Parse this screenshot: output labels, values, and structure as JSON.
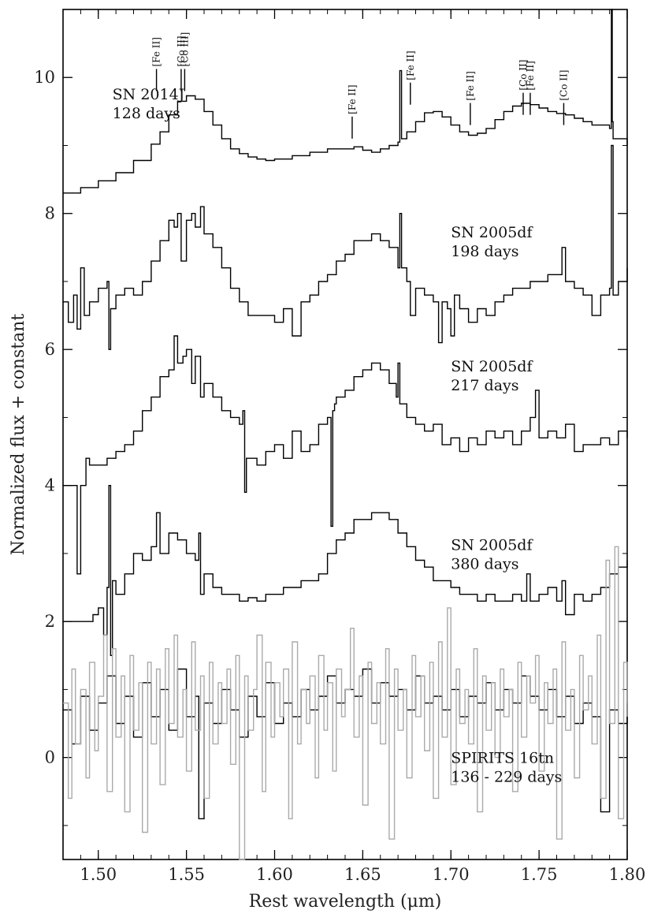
{
  "chart_data": {
    "type": "line",
    "xlabel": "Rest wavelength (μm)",
    "ylabel": "Normalized flux + constant",
    "xlim": [
      1.48,
      1.8
    ],
    "ylim": [
      -1.5,
      11.0
    ],
    "x_ticks": [
      "1.50",
      "1.55",
      "1.60",
      "1.65",
      "1.70",
      "1.75",
      "1.80"
    ],
    "y_ticks": [
      "0",
      "2",
      "4",
      "6",
      "8",
      "10"
    ],
    "grid": false,
    "line_ids": [
      {
        "label": "[Fe II]",
        "x": 1.533,
        "tip": 9.8
      },
      {
        "label": "[Co II]",
        "x": 1.547,
        "tip": 9.8
      },
      {
        "label": "[Co III]",
        "x": 1.549,
        "tip": 9.8
      },
      {
        "label": "[Fe II]",
        "x": 1.644,
        "tip": 9.1
      },
      {
        "label": "[Fe II]",
        "x": 1.677,
        "tip": 9.6
      },
      {
        "label": "[Fe II]",
        "x": 1.711,
        "tip": 9.3
      },
      {
        "label": "[Co II]",
        "x": 1.741,
        "tip": 9.45
      },
      {
        "label": "[Fe II]",
        "x": 1.745,
        "tip": 9.45
      },
      {
        "label": "[Co II]",
        "x": 1.764,
        "tip": 9.3
      }
    ],
    "series": [
      {
        "name": "SN 2014J",
        "name2": "128 days",
        "label_x": 1.508,
        "label_y": 9.68,
        "color": "#000000",
        "x": [
          1.48,
          1.49,
          1.5,
          1.51,
          1.52,
          1.53,
          1.535,
          1.54,
          1.545,
          1.55,
          1.555,
          1.56,
          1.565,
          1.57,
          1.575,
          1.58,
          1.585,
          1.59,
          1.595,
          1.6,
          1.61,
          1.62,
          1.63,
          1.64,
          1.645,
          1.65,
          1.655,
          1.66,
          1.665,
          1.67,
          1.671,
          1.672,
          1.675,
          1.68,
          1.685,
          1.69,
          1.695,
          1.7,
          1.705,
          1.71,
          1.715,
          1.72,
          1.725,
          1.73,
          1.735,
          1.74,
          1.745,
          1.75,
          1.755,
          1.76,
          1.765,
          1.77,
          1.775,
          1.78,
          1.785,
          1.79,
          1.791,
          1.7915,
          1.792,
          1.795,
          1.8
        ],
        "y": [
          8.3,
          8.38,
          8.48,
          8.6,
          8.78,
          9.02,
          9.2,
          9.45,
          9.65,
          9.73,
          9.68,
          9.5,
          9.3,
          9.1,
          8.95,
          8.88,
          8.83,
          8.8,
          8.78,
          8.8,
          8.85,
          8.9,
          8.95,
          8.95,
          8.98,
          8.93,
          8.9,
          8.95,
          9.0,
          9.05,
          10.1,
          9.1,
          9.2,
          9.35,
          9.48,
          9.5,
          9.42,
          9.3,
          9.2,
          9.15,
          9.18,
          9.25,
          9.38,
          9.5,
          9.58,
          9.62,
          9.6,
          9.55,
          9.5,
          9.47,
          9.45,
          9.4,
          9.35,
          9.3,
          9.3,
          9.25,
          11.2,
          9.35,
          9.1,
          9.1,
          9.0
        ]
      },
      {
        "name": "SN 2005df",
        "name2": "198 days",
        "label_x": 1.7,
        "label_y": 7.65,
        "color": "#000000",
        "x": [
          1.48,
          1.483,
          1.486,
          1.488,
          1.49,
          1.492,
          1.495,
          1.5,
          1.505,
          1.506,
          1.507,
          1.51,
          1.515,
          1.52,
          1.525,
          1.53,
          1.535,
          1.54,
          1.543,
          1.545,
          1.547,
          1.55,
          1.553,
          1.555,
          1.558,
          1.56,
          1.565,
          1.57,
          1.575,
          1.58,
          1.585,
          1.59,
          1.595,
          1.6,
          1.605,
          1.61,
          1.615,
          1.62,
          1.625,
          1.63,
          1.635,
          1.64,
          1.645,
          1.65,
          1.655,
          1.66,
          1.665,
          1.67,
          1.671,
          1.672,
          1.675,
          1.677,
          1.68,
          1.685,
          1.69,
          1.693,
          1.695,
          1.698,
          1.7,
          1.702,
          1.705,
          1.71,
          1.715,
          1.72,
          1.725,
          1.73,
          1.735,
          1.74,
          1.745,
          1.75,
          1.755,
          1.76,
          1.763,
          1.765,
          1.77,
          1.775,
          1.78,
          1.785,
          1.79,
          1.791,
          1.792,
          1.795,
          1.8
        ],
        "y": [
          6.7,
          6.4,
          6.8,
          6.3,
          7.2,
          6.5,
          6.7,
          6.9,
          7.0,
          6.0,
          6.6,
          6.8,
          6.9,
          6.8,
          7.0,
          7.3,
          7.6,
          7.9,
          7.8,
          8.0,
          7.3,
          7.9,
          8.0,
          7.8,
          8.1,
          7.7,
          7.5,
          7.2,
          6.9,
          6.7,
          6.5,
          6.5,
          6.5,
          6.4,
          6.6,
          6.2,
          6.7,
          6.8,
          7.0,
          7.1,
          7.3,
          7.4,
          7.6,
          7.6,
          7.7,
          7.6,
          7.5,
          7.2,
          8.0,
          7.2,
          7.0,
          6.5,
          6.9,
          6.8,
          6.7,
          6.1,
          6.7,
          6.6,
          6.2,
          6.8,
          6.6,
          6.4,
          6.6,
          6.5,
          6.7,
          6.8,
          6.9,
          6.9,
          7.0,
          7.0,
          7.1,
          7.1,
          7.5,
          7.0,
          6.9,
          6.8,
          6.5,
          6.8,
          6.9,
          9.0,
          6.8,
          7.0,
          7.2
        ]
      },
      {
        "name": "SN 2005df",
        "name2": "217 days",
        "label_x": 1.7,
        "label_y": 5.68,
        "color": "#000000",
        "x": [
          1.48,
          1.485,
          1.487,
          1.488,
          1.49,
          1.493,
          1.495,
          1.5,
          1.505,
          1.51,
          1.515,
          1.52,
          1.525,
          1.53,
          1.535,
          1.54,
          1.543,
          1.545,
          1.548,
          1.55,
          1.553,
          1.555,
          1.558,
          1.56,
          1.565,
          1.57,
          1.575,
          1.58,
          1.582,
          1.583,
          1.584,
          1.585,
          1.59,
          1.595,
          1.6,
          1.605,
          1.61,
          1.615,
          1.62,
          1.625,
          1.63,
          1.632,
          1.633,
          1.634,
          1.635,
          1.64,
          1.645,
          1.65,
          1.655,
          1.66,
          1.665,
          1.669,
          1.67,
          1.671,
          1.675,
          1.68,
          1.685,
          1.69,
          1.695,
          1.7,
          1.705,
          1.71,
          1.715,
          1.72,
          1.725,
          1.73,
          1.735,
          1.74,
          1.745,
          1.748,
          1.75,
          1.755,
          1.76,
          1.765,
          1.77,
          1.775,
          1.78,
          1.785,
          1.79,
          1.795,
          1.8
        ],
        "y": [
          4.0,
          4.0,
          4.0,
          2.7,
          4.0,
          4.4,
          4.3,
          4.3,
          4.4,
          4.5,
          4.6,
          4.8,
          5.1,
          5.3,
          5.6,
          5.7,
          6.2,
          5.8,
          5.9,
          6.0,
          5.5,
          5.9,
          5.3,
          5.5,
          5.3,
          5.1,
          5.0,
          4.9,
          5.1,
          3.9,
          4.4,
          4.4,
          4.3,
          4.5,
          4.6,
          4.4,
          4.8,
          4.5,
          4.6,
          4.9,
          5.0,
          3.4,
          5.1,
          5.2,
          5.3,
          5.4,
          5.6,
          5.7,
          5.8,
          5.7,
          5.5,
          5.3,
          5.8,
          5.2,
          5.0,
          4.9,
          4.8,
          4.9,
          4.6,
          4.7,
          4.5,
          4.7,
          4.6,
          4.8,
          4.7,
          4.8,
          4.6,
          4.8,
          5.0,
          5.4,
          4.7,
          4.8,
          4.7,
          4.9,
          4.5,
          4.6,
          4.6,
          4.7,
          4.6,
          4.8,
          4.7
        ]
      },
      {
        "name": "SN 2005df",
        "name2": "380 days",
        "label_x": 1.7,
        "label_y": 3.05,
        "color": "#000000",
        "x": [
          1.48,
          1.49,
          1.495,
          1.497,
          1.5,
          1.503,
          1.505,
          1.506,
          1.507,
          1.508,
          1.51,
          1.515,
          1.52,
          1.525,
          1.53,
          1.533,
          1.535,
          1.54,
          1.545,
          1.55,
          1.555,
          1.557,
          1.558,
          1.56,
          1.565,
          1.57,
          1.575,
          1.58,
          1.585,
          1.59,
          1.595,
          1.6,
          1.605,
          1.61,
          1.615,
          1.62,
          1.625,
          1.63,
          1.635,
          1.64,
          1.645,
          1.65,
          1.655,
          1.66,
          1.665,
          1.67,
          1.675,
          1.68,
          1.685,
          1.69,
          1.695,
          1.7,
          1.705,
          1.71,
          1.715,
          1.72,
          1.725,
          1.73,
          1.735,
          1.74,
          1.743,
          1.745,
          1.75,
          1.755,
          1.76,
          1.763,
          1.765,
          1.77,
          1.775,
          1.78,
          1.785,
          1.79,
          1.795,
          1.8
        ],
        "y": [
          2.0,
          2.0,
          2.0,
          2.1,
          2.2,
          1.8,
          2.5,
          4.0,
          1.5,
          2.6,
          2.4,
          2.7,
          3.0,
          2.9,
          3.1,
          3.6,
          3.0,
          3.3,
          3.2,
          3.0,
          2.9,
          3.3,
          2.4,
          2.7,
          2.5,
          2.4,
          2.4,
          2.3,
          2.35,
          2.3,
          2.4,
          2.4,
          2.5,
          2.5,
          2.6,
          2.6,
          2.7,
          3.0,
          3.2,
          3.3,
          3.5,
          3.5,
          3.6,
          3.6,
          3.5,
          3.3,
          3.1,
          2.9,
          2.8,
          2.6,
          2.6,
          2.5,
          2.4,
          2.4,
          2.3,
          2.4,
          2.3,
          2.3,
          2.4,
          2.3,
          2.7,
          2.3,
          2.4,
          2.5,
          2.3,
          2.6,
          2.1,
          2.4,
          2.3,
          2.4,
          2.5,
          2.7,
          2.8,
          2.9
        ]
      },
      {
        "name": "SPIRITS 16tn",
        "name2": "136 - 229 days",
        "label_x": 1.7,
        "label_y": -0.08,
        "color": "#000000",
        "x": [
          1.48,
          1.485,
          1.49,
          1.495,
          1.5,
          1.505,
          1.51,
          1.515,
          1.52,
          1.525,
          1.53,
          1.535,
          1.54,
          1.545,
          1.55,
          1.555,
          1.557,
          1.56,
          1.565,
          1.57,
          1.575,
          1.58,
          1.585,
          1.59,
          1.595,
          1.6,
          1.605,
          1.61,
          1.615,
          1.62,
          1.625,
          1.63,
          1.635,
          1.64,
          1.645,
          1.65,
          1.655,
          1.66,
          1.665,
          1.67,
          1.675,
          1.68,
          1.685,
          1.69,
          1.695,
          1.7,
          1.705,
          1.71,
          1.715,
          1.72,
          1.725,
          1.73,
          1.735,
          1.74,
          1.745,
          1.75,
          1.755,
          1.76,
          1.765,
          1.77,
          1.775,
          1.78,
          1.785,
          1.79,
          1.795,
          1.8
        ],
        "y": [
          0.7,
          0.2,
          0.9,
          0.4,
          0.8,
          1.2,
          0.5,
          0.9,
          0.3,
          1.1,
          0.6,
          1.0,
          0.4,
          1.3,
          0.6,
          0.9,
          -0.9,
          0.8,
          0.5,
          1.0,
          0.7,
          0.3,
          0.9,
          0.6,
          1.1,
          0.5,
          0.8,
          0.6,
          1.0,
          0.7,
          0.9,
          1.2,
          0.8,
          1.0,
          0.9,
          1.3,
          0.8,
          1.1,
          0.9,
          1.0,
          0.7,
          1.2,
          0.8,
          0.9,
          0.7,
          1.0,
          0.6,
          0.9,
          0.8,
          1.1,
          0.7,
          1.0,
          0.8,
          1.2,
          0.9,
          0.7,
          1.0,
          0.6,
          0.9,
          0.5,
          0.8,
          0.6,
          -0.8,
          0.7,
          0.5,
          0.8
        ]
      },
      {
        "name": "",
        "color": "#aaaaaa",
        "x": [
          1.48,
          1.483,
          1.485,
          1.487,
          1.49,
          1.493,
          1.495,
          1.498,
          1.5,
          1.503,
          1.505,
          1.508,
          1.51,
          1.513,
          1.515,
          1.518,
          1.52,
          1.523,
          1.525,
          1.528,
          1.53,
          1.533,
          1.535,
          1.538,
          1.54,
          1.543,
          1.545,
          1.548,
          1.55,
          1.553,
          1.555,
          1.558,
          1.56,
          1.563,
          1.565,
          1.568,
          1.57,
          1.573,
          1.575,
          1.578,
          1.58,
          1.583,
          1.585,
          1.588,
          1.59,
          1.593,
          1.595,
          1.598,
          1.6,
          1.603,
          1.605,
          1.608,
          1.61,
          1.613,
          1.615,
          1.618,
          1.62,
          1.623,
          1.625,
          1.628,
          1.63,
          1.633,
          1.635,
          1.638,
          1.64,
          1.643,
          1.645,
          1.648,
          1.65,
          1.653,
          1.655,
          1.658,
          1.66,
          1.663,
          1.665,
          1.668,
          1.67,
          1.673,
          1.675,
          1.678,
          1.68,
          1.683,
          1.685,
          1.688,
          1.69,
          1.693,
          1.695,
          1.698,
          1.7,
          1.703,
          1.705,
          1.708,
          1.71,
          1.713,
          1.715,
          1.718,
          1.72,
          1.723,
          1.725,
          1.728,
          1.73,
          1.733,
          1.735,
          1.738,
          1.74,
          1.743,
          1.745,
          1.748,
          1.75,
          1.753,
          1.755,
          1.758,
          1.76,
          1.763,
          1.765,
          1.768,
          1.77,
          1.773,
          1.775,
          1.778,
          1.78,
          1.783,
          1.785,
          1.788,
          1.79,
          1.793,
          1.795,
          1.798,
          1.8
        ],
        "y": [
          0.8,
          -0.6,
          1.3,
          0.2,
          1.0,
          -0.3,
          1.4,
          0.1,
          0.9,
          1.8,
          -0.5,
          1.6,
          0.3,
          1.2,
          -0.8,
          1.5,
          0.4,
          1.1,
          -1.1,
          1.4,
          0.2,
          1.3,
          -0.4,
          1.6,
          0.5,
          1.8,
          0.3,
          1.0,
          -0.2,
          1.7,
          0.4,
          1.2,
          -0.6,
          1.4,
          0.2,
          1.1,
          0.5,
          1.3,
          -0.1,
          1.5,
          -1.9,
          1.2,
          0.4,
          1.0,
          1.8,
          -0.5,
          1.4,
          0.3,
          1.1,
          0.6,
          1.3,
          -0.9,
          1.7,
          0.2,
          1.0,
          0.5,
          1.2,
          -0.3,
          1.5,
          0.4,
          1.1,
          -0.2,
          1.3,
          0.6,
          1.0,
          1.9,
          0.3,
          1.2,
          -0.7,
          1.4,
          0.5,
          1.1,
          0.2,
          1.6,
          -1.2,
          1.3,
          0.4,
          1.0,
          -0.3,
          1.5,
          0.6,
          1.2,
          0.1,
          1.4,
          -0.6,
          1.7,
          0.3,
          2.2,
          -0.4,
          1.3,
          0.5,
          1.0,
          0.2,
          1.6,
          -0.8,
          1.2,
          0.4,
          1.1,
          0.0,
          1.3,
          0.6,
          1.0,
          -0.5,
          1.4,
          0.3,
          1.2,
          0.8,
          1.5,
          -0.2,
          1.1,
          0.5,
          1.3,
          -1.2,
          1.7,
          0.4,
          1.0,
          -0.3,
          1.5,
          0.7,
          1.2,
          0.2,
          1.8,
          -0.6,
          2.9,
          0.5,
          3.1,
          -0.9,
          1.4,
          0.6
        ]
      }
    ]
  }
}
